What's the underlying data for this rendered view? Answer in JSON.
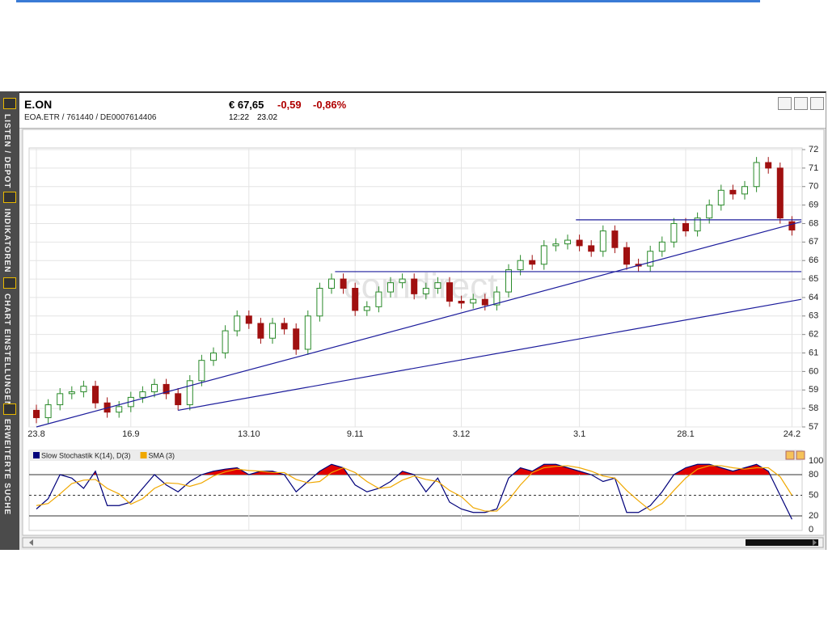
{
  "sidebar": {
    "tabs": [
      "LISTEN / DEPOT",
      "INDIKATOREN",
      "CHART EINSTELLUNGEN",
      "ERWEITERTE SUCHE"
    ]
  },
  "header": {
    "name": "E.ON",
    "ids": "EOA.ETR  /  761440  /  DE0007614406",
    "price": "€ 67,65",
    "change": "-0,59",
    "change_pct": "-0,86%",
    "time": "12:22",
    "date": "23.02"
  },
  "chart_data": [
    {
      "type": "candlestick",
      "watermark": "comdirect",
      "categories": [
        "23.8",
        null,
        null,
        null,
        null,
        null,
        null,
        null,
        "16.9",
        null,
        null,
        null,
        null,
        null,
        null,
        null,
        null,
        null,
        "13.10",
        null,
        null,
        null,
        null,
        null,
        null,
        null,
        null,
        "9.11",
        null,
        null,
        null,
        null,
        null,
        null,
        null,
        null,
        "3.12",
        null,
        null,
        null,
        null,
        null,
        null,
        null,
        null,
        null,
        "3.1",
        null,
        null,
        null,
        null,
        null,
        null,
        null,
        null,
        "28.1",
        null,
        null,
        null,
        null,
        null,
        null,
        null,
        null,
        "24.2"
      ],
      "open": [
        57.9,
        57.5,
        58.2,
        58.8,
        58.9,
        59.2,
        58.3,
        57.8,
        58.1,
        58.6,
        58.9,
        59.3,
        58.8,
        58.2,
        59.5,
        60.6,
        61.0,
        62.2,
        63.0,
        62.6,
        61.8,
        62.6,
        62.3,
        61.2,
        63.0,
        64.5,
        65.0,
        64.5,
        63.3,
        63.5,
        64.3,
        64.8,
        65.0,
        64.2,
        64.5,
        64.8,
        63.8,
        63.7,
        63.9,
        63.6,
        64.3,
        65.5,
        66.0,
        65.8,
        66.8,
        66.9,
        67.1,
        66.8,
        66.5,
        67.6,
        66.7,
        65.8,
        65.7,
        66.5,
        67.0,
        68.0,
        67.6,
        68.3,
        69.0,
        69.8,
        69.6,
        70.0,
        71.3,
        71.0,
        68.1
      ],
      "high": [
        58.2,
        58.5,
        59.1,
        59.2,
        59.5,
        59.5,
        58.6,
        58.4,
        58.9,
        59.2,
        59.6,
        59.6,
        59.1,
        59.8,
        60.9,
        61.3,
        62.5,
        63.3,
        63.3,
        62.9,
        62.9,
        62.9,
        62.6,
        63.3,
        64.8,
        65.3,
        65.3,
        64.8,
        63.8,
        64.6,
        65.1,
        65.3,
        65.3,
        64.8,
        65.1,
        65.1,
        64.1,
        64.2,
        64.2,
        64.6,
        65.8,
        66.3,
        66.3,
        67.1,
        67.2,
        67.4,
        67.4,
        67.1,
        67.9,
        67.9,
        67.0,
        66.1,
        66.8,
        67.3,
        68.3,
        68.3,
        68.6,
        69.3,
        70.1,
        70.1,
        70.3,
        71.6,
        71.6,
        71.3,
        68.4
      ],
      "low": [
        57.2,
        57.2,
        57.9,
        58.5,
        58.6,
        58.0,
        57.5,
        57.5,
        57.8,
        58.3,
        58.6,
        58.5,
        57.9,
        57.9,
        59.2,
        60.3,
        60.7,
        61.9,
        62.3,
        61.5,
        61.5,
        62.0,
        60.9,
        60.9,
        62.7,
        64.2,
        64.2,
        63.0,
        63.0,
        63.2,
        64.0,
        64.5,
        63.9,
        63.9,
        64.2,
        63.5,
        63.4,
        63.4,
        63.3,
        63.3,
        64.0,
        65.2,
        65.5,
        65.5,
        66.5,
        66.6,
        66.5,
        66.2,
        66.2,
        66.4,
        65.5,
        65.4,
        65.4,
        66.2,
        66.7,
        67.3,
        67.3,
        68.0,
        68.7,
        69.3,
        69.3,
        69.7,
        70.7,
        68.0,
        67.35
      ],
      "close": [
        57.5,
        58.2,
        58.8,
        58.9,
        59.2,
        58.3,
        57.8,
        58.1,
        58.6,
        58.9,
        59.3,
        58.8,
        58.2,
        59.5,
        60.6,
        61.0,
        62.2,
        63.0,
        62.6,
        61.8,
        62.6,
        62.3,
        61.2,
        63.0,
        64.5,
        65.0,
        64.5,
        63.3,
        63.5,
        64.3,
        64.8,
        65.0,
        64.2,
        64.5,
        64.8,
        63.8,
        63.7,
        63.9,
        63.6,
        64.3,
        65.5,
        66.0,
        65.8,
        66.8,
        66.9,
        67.1,
        66.8,
        66.5,
        67.6,
        66.7,
        65.8,
        65.7,
        66.5,
        67.0,
        68.0,
        67.6,
        68.3,
        69.0,
        69.8,
        69.6,
        70.0,
        71.3,
        71.0,
        68.3,
        67.65
      ],
      "up_color": "#ffffff",
      "up_edge": "#2a8a2a",
      "down_color": "#a01010",
      "ylim": [
        57,
        72
      ],
      "yticks": [
        57,
        58,
        59,
        60,
        61,
        62,
        63,
        64,
        65,
        66,
        67,
        68,
        69,
        70,
        71,
        72
      ],
      "grid": true,
      "trendline_color": "#1c1c9c",
      "trendlines": [
        {
          "x": [
            0,
            64.8
          ],
          "y": [
            57.0,
            68.1
          ]
        },
        {
          "x": [
            12,
            64.8
          ],
          "y": [
            57.9,
            63.9
          ]
        },
        {
          "x": [
            25.3,
            64.8
          ],
          "y": [
            65.4,
            65.4
          ]
        },
        {
          "x": [
            45.7,
            64.8
          ],
          "y": [
            68.2,
            68.2
          ]
        }
      ]
    },
    {
      "type": "line",
      "series": [
        {
          "name": "Slow Stochastik K(14), D(3)",
          "color": "#00007a",
          "values": [
            30,
            45,
            80,
            75,
            60,
            85,
            35,
            35,
            40,
            60,
            80,
            65,
            55,
            70,
            80,
            85,
            88,
            90,
            80,
            85,
            85,
            80,
            55,
            70,
            85,
            95,
            90,
            65,
            55,
            60,
            70,
            85,
            80,
            55,
            75,
            40,
            30,
            25,
            25,
            30,
            75,
            90,
            85,
            95,
            95,
            90,
            85,
            80,
            70,
            75,
            25,
            25,
            35,
            55,
            80,
            90,
            95,
            95,
            90,
            85,
            90,
            95,
            85,
            50,
            15
          ]
        },
        {
          "name": "SMA (3)",
          "color": "#f0a800",
          "values": [
            35,
            38,
            52,
            67,
            72,
            73,
            60,
            52,
            37,
            45,
            60,
            68,
            67,
            63,
            68,
            78,
            84,
            88,
            86,
            85,
            83,
            83,
            73,
            68,
            70,
            83,
            90,
            83,
            70,
            60,
            62,
            72,
            78,
            73,
            70,
            57,
            48,
            32,
            27,
            27,
            43,
            65,
            83,
            90,
            92,
            93,
            90,
            85,
            78,
            75,
            57,
            42,
            28,
            38,
            57,
            75,
            88,
            93,
            93,
            90,
            88,
            90,
            90,
            77,
            50
          ]
        }
      ],
      "ylim": [
        0,
        100
      ],
      "yticks": [
        0,
        20,
        50,
        80,
        100
      ],
      "level_styles": [
        "none",
        "solid",
        "dashed",
        "solid",
        "none"
      ],
      "fill_above": 80,
      "fill_color": "#e00000"
    }
  ]
}
